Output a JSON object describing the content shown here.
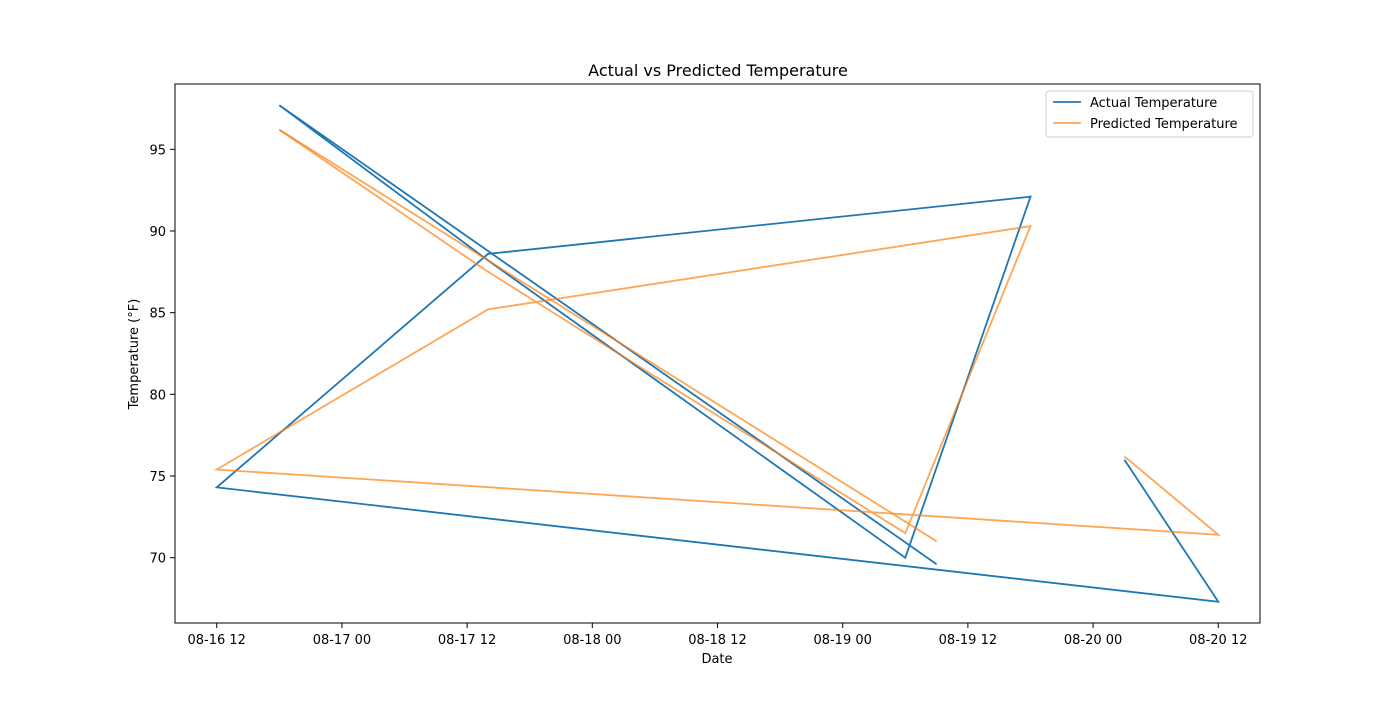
{
  "chart_data": {
    "type": "line",
    "title": "Actual vs Predicted Temperature",
    "xlabel": "Date",
    "ylabel": "Temperature (°F)",
    "x_type": "datetime",
    "xlim": [
      "2024-08-16T08:00:00",
      "2024-08-20T16:00:00"
    ],
    "ylim": [
      66,
      99
    ],
    "x_ticks": [
      {
        "t": "2024-08-16T12:00:00",
        "label": "08-16 12"
      },
      {
        "t": "2024-08-17T00:00:00",
        "label": "08-17 00"
      },
      {
        "t": "2024-08-17T12:00:00",
        "label": "08-17 12"
      },
      {
        "t": "2024-08-18T00:00:00",
        "label": "08-18 00"
      },
      {
        "t": "2024-08-18T12:00:00",
        "label": "08-18 12"
      },
      {
        "t": "2024-08-19T00:00:00",
        "label": "08-19 00"
      },
      {
        "t": "2024-08-19T12:00:00",
        "label": "08-19 12"
      },
      {
        "t": "2024-08-20T00:00:00",
        "label": "08-20 00"
      },
      {
        "t": "2024-08-20T12:00:00",
        "label": "08-20 12"
      }
    ],
    "y_ticks": [
      70,
      75,
      80,
      85,
      90,
      95
    ],
    "grid": false,
    "legend": "top-right",
    "x": [
      "2024-08-16T18:00:00",
      "2024-08-17T14:00:00",
      "2024-08-19T06:00:00",
      "2024-08-19T18:00:00",
      "2024-08-17T14:00:00",
      "2024-08-16T12:00:00",
      "2024-08-20T12:00:00",
      "2024-08-20T03:00:00",
      "__GAP__",
      "2024-08-16T18:00:00",
      "2024-08-19T09:00:00"
    ],
    "series": [
      {
        "name": "Actual Temperature",
        "color": "#1f77b4",
        "alpha": 1.0,
        "values": [
          97.7,
          88.2,
          70.0,
          92.1,
          88.6,
          74.3,
          67.3,
          76.0,
          null,
          97.7,
          69.6
        ]
      },
      {
        "name": "Predicted Temperature",
        "color": "#ff7f0e",
        "alpha": 0.7,
        "values": [
          96.2,
          87.5,
          71.5,
          90.3,
          85.2,
          75.4,
          71.4,
          76.2,
          null,
          96.2,
          71.0
        ]
      }
    ]
  }
}
